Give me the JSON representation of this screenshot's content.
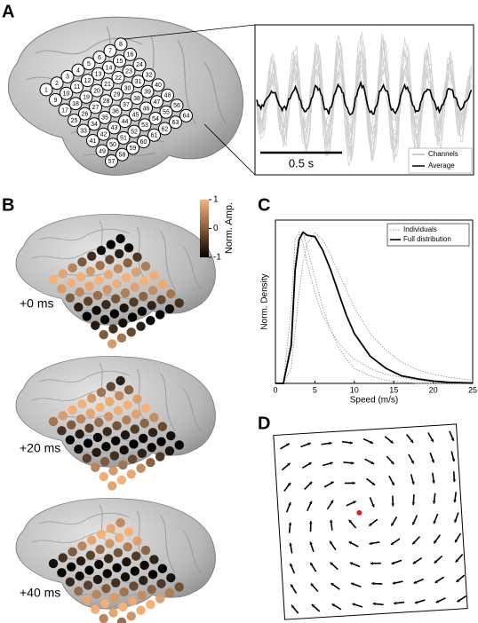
{
  "panel_a": {
    "label": "A",
    "electrodes": [
      1,
      2,
      3,
      4,
      5,
      6,
      7,
      8,
      9,
      10,
      11,
      12,
      13,
      14,
      15,
      16,
      17,
      18,
      19,
      20,
      21,
      22,
      23,
      24,
      25,
      26,
      27,
      28,
      29,
      30,
      31,
      32,
      33,
      34,
      35,
      36,
      37,
      38,
      39,
      40,
      41,
      42,
      43,
      44,
      45,
      46,
      47,
      48,
      49,
      50,
      51,
      52,
      53,
      54,
      55,
      56,
      57,
      58,
      59,
      60,
      61,
      62,
      63,
      64
    ],
    "scale_bar": "0.5 s",
    "legend": [
      "Channels",
      "Average"
    ]
  },
  "panel_b": {
    "label": "B",
    "colorbar": {
      "title": "Norm. Amp.",
      "ticks": [
        1,
        0,
        -1
      ]
    },
    "frames": [
      "+0 ms",
      "+20 ms",
      "+40 ms"
    ]
  },
  "chart_data": {
    "type": "line",
    "panel_label": "C",
    "xlabel": "Speed (m/s)",
    "ylabel": "Norm. Density",
    "x": [
      0,
      1,
      2,
      2.5,
      3,
      3.5,
      4,
      5,
      6,
      7,
      8,
      9,
      10,
      12,
      14,
      16,
      18,
      20,
      22,
      25
    ],
    "xlim": [
      0,
      25
    ],
    "xticks": [
      0,
      5,
      10,
      15,
      20,
      25
    ],
    "ylim": [
      0,
      1.08
    ],
    "legend": "upper right",
    "series": [
      {
        "name": "Individuals",
        "color": "#999999",
        "style": "dotted",
        "values": [
          [
            0,
            0,
            0.5,
            0.95,
            1,
            0.93,
            0.8,
            0.6,
            0.45,
            0.35,
            0.27,
            0.21,
            0.16,
            0.1,
            0.06,
            0.04,
            0.02,
            0.01,
            0.005,
            0.001
          ],
          [
            0,
            0,
            0.1,
            0.35,
            0.6,
            0.8,
            0.92,
            1,
            0.95,
            0.85,
            0.73,
            0.62,
            0.5,
            0.33,
            0.22,
            0.14,
            0.09,
            0.06,
            0.04,
            0.02
          ],
          [
            0,
            0,
            0.3,
            0.8,
            0.98,
            1,
            0.9,
            0.7,
            0.5,
            0.35,
            0.24,
            0.16,
            0.1,
            0.05,
            0.02,
            0.01,
            0,
            0,
            0,
            0
          ]
        ]
      },
      {
        "name": "Full distribution",
        "color": "#000000",
        "style": "solid",
        "values": [
          0,
          0,
          0.25,
          0.75,
          0.95,
          1,
          0.98,
          0.97,
          0.88,
          0.75,
          0.6,
          0.45,
          0.33,
          0.18,
          0.1,
          0.05,
          0.03,
          0.015,
          0.007,
          0.002
        ]
      }
    ]
  },
  "panel_d": {
    "label": "D"
  }
}
